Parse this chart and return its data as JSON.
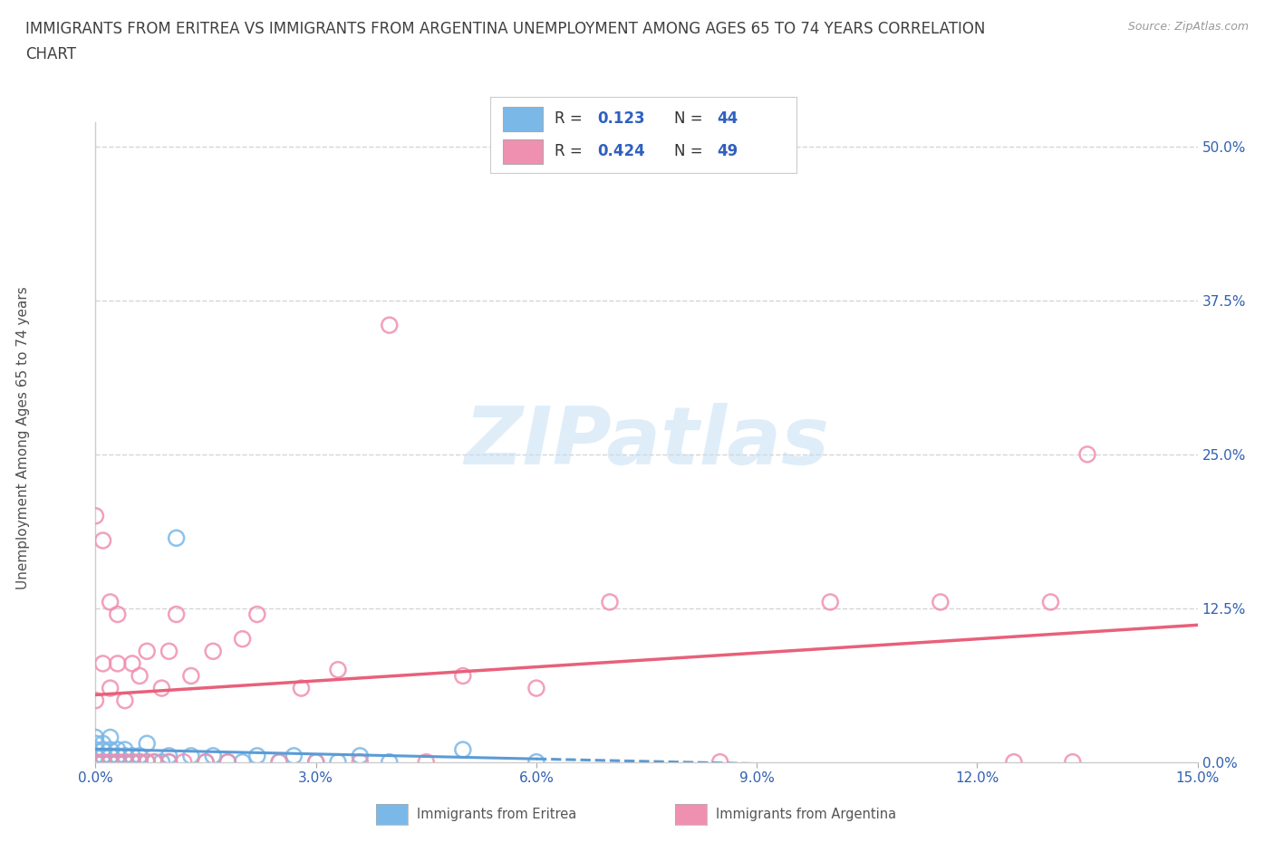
{
  "title_line1": "IMMIGRANTS FROM ERITREA VS IMMIGRANTS FROM ARGENTINA UNEMPLOYMENT AMONG AGES 65 TO 74 YEARS CORRELATION",
  "title_line2": "CHART",
  "source_text": "Source: ZipAtlas.com",
  "ylabel": "Unemployment Among Ages 65 to 74 years",
  "xlim": [
    0.0,
    0.15
  ],
  "ylim": [
    0.0,
    0.52
  ],
  "legend_label_eritrea": "Immigrants from Eritrea",
  "legend_label_argentina": "Immigrants from Argentina",
  "eritrea_R": 0.123,
  "eritrea_N": 44,
  "argentina_R": 0.424,
  "argentina_N": 49,
  "eritrea_marker_color": "#7ab8e8",
  "argentina_marker_color": "#f090b0",
  "eritrea_line_color": "#5b9bd5",
  "argentina_line_color": "#e8607a",
  "watermark_color": "#c5dff5",
  "watermark_text": "ZIPatlas",
  "background_color": "#ffffff",
  "grid_color": "#d5d5d5",
  "title_color": "#404040",
  "tick_color": "#3060b0",
  "source_color": "#999999",
  "legend_R_color": "#3060c0",
  "ytick_labels": [
    "0.0%",
    "12.5%",
    "25.0%",
    "37.5%",
    "50.0%"
  ],
  "ytick_vals": [
    0.0,
    0.125,
    0.25,
    0.375,
    0.5
  ],
  "xtick_labels": [
    "0.0%",
    "3.0%",
    "6.0%",
    "9.0%",
    "12.0%",
    "15.0%"
  ],
  "xtick_vals": [
    0.0,
    0.03,
    0.06,
    0.09,
    0.12,
    0.15
  ],
  "eritrea_x": [
    0.0,
    0.0,
    0.0,
    0.0,
    0.0,
    0.001,
    0.001,
    0.001,
    0.001,
    0.002,
    0.002,
    0.002,
    0.002,
    0.003,
    0.003,
    0.003,
    0.004,
    0.004,
    0.004,
    0.005,
    0.005,
    0.006,
    0.006,
    0.007,
    0.007,
    0.008,
    0.009,
    0.01,
    0.01,
    0.011,
    0.013,
    0.015,
    0.016,
    0.018,
    0.02,
    0.022,
    0.025,
    0.027,
    0.03,
    0.033,
    0.036,
    0.04,
    0.05,
    0.06
  ],
  "eritrea_y": [
    0.0,
    0.005,
    0.01,
    0.015,
    0.02,
    0.0,
    0.005,
    0.01,
    0.015,
    0.0,
    0.005,
    0.01,
    0.02,
    0.0,
    0.005,
    0.01,
    0.0,
    0.005,
    0.01,
    0.0,
    0.005,
    0.0,
    0.005,
    0.0,
    0.015,
    0.0,
    0.0,
    0.0,
    0.005,
    0.182,
    0.005,
    0.0,
    0.005,
    0.0,
    0.0,
    0.005,
    0.0,
    0.005,
    0.0,
    0.0,
    0.005,
    0.0,
    0.01,
    0.0
  ],
  "argentina_x": [
    0.0,
    0.0,
    0.0,
    0.001,
    0.001,
    0.001,
    0.002,
    0.002,
    0.002,
    0.003,
    0.003,
    0.003,
    0.004,
    0.004,
    0.005,
    0.005,
    0.006,
    0.006,
    0.007,
    0.007,
    0.008,
    0.009,
    0.01,
    0.01,
    0.011,
    0.012,
    0.013,
    0.015,
    0.016,
    0.018,
    0.02,
    0.022,
    0.025,
    0.028,
    0.03,
    0.033,
    0.036,
    0.04,
    0.045,
    0.05,
    0.06,
    0.07,
    0.085,
    0.1,
    0.115,
    0.125,
    0.13,
    0.133,
    0.135
  ],
  "argentina_y": [
    0.0,
    0.05,
    0.2,
    0.0,
    0.08,
    0.18,
    0.0,
    0.06,
    0.13,
    0.0,
    0.08,
    0.12,
    0.0,
    0.05,
    0.0,
    0.08,
    0.0,
    0.07,
    0.0,
    0.09,
    0.0,
    0.06,
    0.0,
    0.09,
    0.12,
    0.0,
    0.07,
    0.0,
    0.09,
    0.0,
    0.1,
    0.12,
    0.0,
    0.06,
    0.0,
    0.075,
    0.0,
    0.355,
    0.0,
    0.07,
    0.06,
    0.13,
    0.0,
    0.13,
    0.13,
    0.0,
    0.13,
    0.0,
    0.25
  ]
}
